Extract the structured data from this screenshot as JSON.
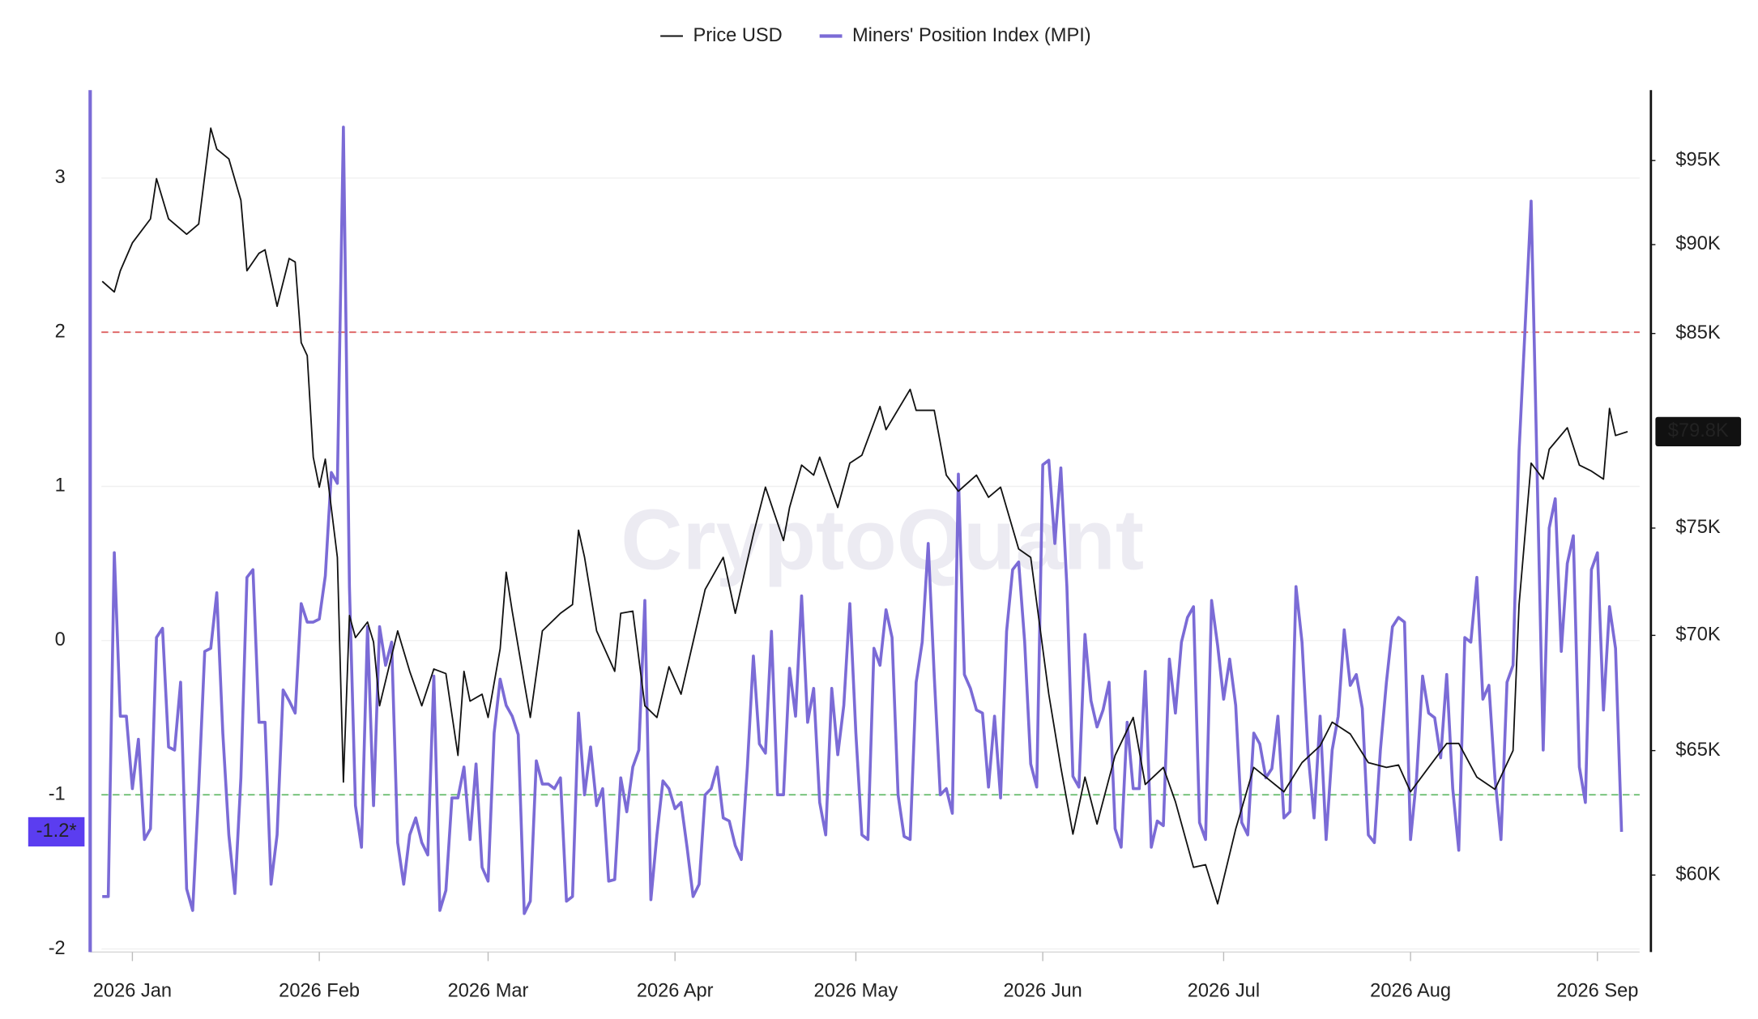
{
  "chart_data": {
    "type": "line",
    "watermark": "CryptoQuant",
    "legend": "top",
    "grid": true,
    "xlim": [
      -6,
      251
    ],
    "xticks": [
      {
        "value": 1,
        "label": "2026 Jan"
      },
      {
        "value": 32,
        "label": "2026 Feb"
      },
      {
        "value": 60,
        "label": "2026 Mar"
      },
      {
        "value": 91,
        "label": "2026 Apr"
      },
      {
        "value": 121,
        "label": "2026 May"
      },
      {
        "value": 152,
        "label": "2026 Jun"
      },
      {
        "value": 182,
        "label": "2026 Jul"
      },
      {
        "value": 213,
        "label": "2026 Aug"
      },
      {
        "value": 244,
        "label": "2026 Sep"
      }
    ],
    "ylim": [
      -2.02,
      3.57
    ],
    "yticks": [
      -2,
      -1,
      0,
      1,
      2,
      3
    ],
    "y2lim": [
      57100,
      99400
    ],
    "y2log": true,
    "y2ticks": [
      {
        "value": 60000,
        "label": "$60K"
      },
      {
        "value": 65000,
        "label": "$65K"
      },
      {
        "value": 70000,
        "label": "$70K"
      },
      {
        "value": 75000,
        "label": "$75K"
      },
      {
        "value": 85000,
        "label": "$85K"
      },
      {
        "value": 90000,
        "label": "$90K"
      },
      {
        "value": 95000,
        "label": "$95K"
      }
    ],
    "reference_lines": [
      {
        "value": 2,
        "color": "#e06a6a"
      },
      {
        "value": -1,
        "color": "#6fbf73"
      }
    ],
    "series": [
      {
        "name": "Price USD",
        "color": "#111111",
        "axis": "y2",
        "width": 1.3,
        "last_value_label": "$79.8K",
        "x": [
          -4,
          -2,
          -1,
          1,
          4,
          5,
          7,
          10,
          12,
          14,
          15,
          17,
          19,
          20,
          22,
          23,
          25,
          27,
          28,
          29,
          30,
          31,
          32,
          33,
          35,
          36,
          37,
          38,
          40,
          41,
          42,
          45,
          47,
          49,
          51,
          53,
          55,
          56,
          57,
          59,
          60,
          62,
          63,
          64,
          66,
          67,
          69,
          72,
          74,
          75,
          76,
          78,
          81,
          82,
          84,
          86,
          88,
          90,
          92,
          94,
          96,
          99,
          101,
          104,
          106,
          109,
          110,
          112,
          114,
          115,
          118,
          120,
          122,
          125,
          126,
          130,
          131,
          134,
          136,
          138,
          141,
          143,
          145,
          148,
          150,
          153,
          155,
          157,
          159,
          161,
          164,
          167,
          169,
          172,
          174,
          177,
          179,
          181,
          184,
          187,
          189,
          192,
          195,
          198,
          200,
          203,
          206,
          209,
          211,
          213,
          216,
          219,
          221,
          224,
          227,
          230,
          231,
          233,
          235,
          236,
          239,
          241,
          243,
          245,
          246,
          247,
          249
        ],
        "values": [
          87900,
          87300,
          88500,
          90100,
          91500,
          93900,
          91500,
          90600,
          91200,
          97000,
          95700,
          95100,
          92600,
          88500,
          89500,
          89700,
          86500,
          89200,
          89000,
          84500,
          83800,
          78500,
          77000,
          78400,
          73600,
          63700,
          70900,
          69900,
          70600,
          69700,
          66900,
          70200,
          68400,
          66900,
          68500,
          68300,
          64800,
          68400,
          67100,
          67400,
          66400,
          69400,
          72900,
          71100,
          67900,
          66400,
          70200,
          71000,
          71400,
          74900,
          73600,
          70200,
          68400,
          71000,
          71100,
          66900,
          66400,
          68600,
          67400,
          69700,
          72100,
          73600,
          71000,
          74700,
          77000,
          74400,
          76000,
          78100,
          77600,
          78500,
          76000,
          78200,
          78600,
          81100,
          79900,
          82000,
          80900,
          80900,
          77600,
          76800,
          77600,
          76500,
          77000,
          74000,
          73600,
          67400,
          64300,
          61600,
          63900,
          62000,
          64800,
          66400,
          63600,
          64300,
          62900,
          60300,
          60400,
          58900,
          61800,
          64300,
          63900,
          63300,
          64500,
          65200,
          66200,
          65700,
          64500,
          64300,
          64400,
          63300,
          64300,
          65300,
          65300,
          63900,
          63400,
          65000,
          71400,
          78200,
          77400,
          78900,
          80000,
          78100,
          77800,
          77400,
          81000,
          79600,
          79800
        ]
      },
      {
        "name": "Miners' Position Index (MPI)",
        "color": "#7b6bd6",
        "axis": "y",
        "width": 2.6,
        "last_value_label": "-1.2*",
        "x": [
          -4,
          -3,
          -2,
          -1,
          0,
          1,
          2,
          3,
          4,
          5,
          6,
          7,
          8,
          9,
          10,
          11,
          12,
          13,
          14,
          15,
          16,
          17,
          18,
          19,
          20,
          21,
          22,
          23,
          24,
          25,
          26,
          27,
          28,
          29,
          30,
          31,
          32,
          33,
          34,
          35,
          36,
          37,
          38,
          39,
          40,
          41,
          42,
          43,
          44,
          45,
          46,
          47,
          48,
          49,
          50,
          51,
          52,
          53,
          54,
          55,
          56,
          57,
          58,
          59,
          60,
          61,
          62,
          63,
          64,
          65,
          66,
          67,
          68,
          69,
          70,
          71,
          72,
          73,
          74,
          75,
          76,
          77,
          78,
          79,
          80,
          81,
          82,
          83,
          84,
          85,
          86,
          87,
          88,
          89,
          90,
          91,
          92,
          93,
          94,
          95,
          96,
          97,
          98,
          99,
          100,
          101,
          102,
          103,
          104,
          105,
          106,
          107,
          108,
          109,
          110,
          111,
          112,
          113,
          114,
          115,
          116,
          117,
          118,
          119,
          120,
          121,
          122,
          123,
          124,
          125,
          126,
          127,
          128,
          129,
          130,
          131,
          132,
          133,
          134,
          135,
          136,
          137,
          138,
          139,
          140,
          141,
          142,
          143,
          144,
          145,
          146,
          147,
          148,
          149,
          150,
          151,
          152,
          153,
          154,
          155,
          156,
          157,
          158,
          159,
          160,
          161,
          162,
          163,
          164,
          165,
          166,
          167,
          168,
          169,
          170,
          171,
          172,
          173,
          174,
          175,
          176,
          177,
          178,
          179,
          180,
          181,
          182,
          183,
          184,
          185,
          186,
          187,
          188,
          189,
          190,
          191,
          192,
          193,
          194,
          195,
          196,
          197,
          198,
          199,
          200,
          201,
          202,
          203,
          204,
          205,
          206,
          207,
          208,
          209,
          210,
          211,
          212,
          213,
          214,
          215,
          216,
          217,
          218,
          219,
          220,
          221,
          222,
          223,
          224,
          225,
          226,
          227,
          228,
          229,
          230,
          231,
          232,
          233,
          234,
          235,
          236,
          237,
          238,
          239,
          240,
          241,
          242,
          243,
          244,
          245,
          246,
          247,
          248
        ],
        "values": [
          -1.66,
          -1.66,
          0.57,
          -0.49,
          -0.49,
          -0.96,
          -0.64,
          -1.29,
          -1.22,
          0.02,
          0.08,
          -0.69,
          -0.71,
          -0.27,
          -1.61,
          -1.75,
          -0.96,
          -0.07,
          -0.05,
          0.31,
          -0.6,
          -1.26,
          -1.64,
          -0.89,
          0.41,
          0.46,
          -0.53,
          -0.53,
          -1.58,
          -1.26,
          -0.32,
          -0.39,
          -0.47,
          0.24,
          0.12,
          0.12,
          0.14,
          0.42,
          1.09,
          1.02,
          3.33,
          0.35,
          -1.07,
          -1.34,
          0.09,
          -1.07,
          0.09,
          -0.16,
          -0.01,
          -1.31,
          -1.58,
          -1.26,
          -1.15,
          -1.31,
          -1.39,
          -0.23,
          -1.75,
          -1.62,
          -1.02,
          -1.02,
          -0.82,
          -1.29,
          -0.8,
          -1.47,
          -1.56,
          -0.6,
          -0.25,
          -0.42,
          -0.49,
          -0.61,
          -1.77,
          -1.69,
          -0.78,
          -0.93,
          -0.93,
          -0.96,
          -0.89,
          -1.69,
          -1.66,
          -0.47,
          -1.0,
          -0.69,
          -1.07,
          -0.96,
          -1.56,
          -1.55,
          -0.89,
          -1.11,
          -0.82,
          -0.71,
          0.26,
          -1.68,
          -1.26,
          -0.91,
          -0.96,
          -1.09,
          -1.05,
          -1.34,
          -1.66,
          -1.58,
          -1.0,
          -0.96,
          -0.82,
          -1.15,
          -1.17,
          -1.33,
          -1.42,
          -0.82,
          -0.1,
          -0.67,
          -0.73,
          0.06,
          -1.0,
          -1.0,
          -0.18,
          -0.49,
          0.29,
          -0.53,
          -0.31,
          -1.05,
          -1.26,
          -0.31,
          -0.74,
          -0.42,
          0.24,
          -0.6,
          -1.26,
          -1.29,
          -0.05,
          -0.16,
          0.2,
          0.02,
          -1.0,
          -1.27,
          -1.29,
          -0.27,
          -0.01,
          0.63,
          -0.23,
          -1.0,
          -0.96,
          -1.12,
          1.08,
          -0.22,
          -0.31,
          -0.45,
          -0.47,
          -0.95,
          -0.49,
          -1.02,
          0.06,
          0.46,
          0.51,
          -0.01,
          -0.8,
          -0.95,
          1.14,
          1.17,
          0.63,
          1.12,
          0.35,
          -0.88,
          -0.95,
          0.04,
          -0.39,
          -0.56,
          -0.45,
          -0.27,
          -1.22,
          -1.34,
          -0.53,
          -0.96,
          -0.96,
          -0.2,
          -1.34,
          -1.17,
          -1.2,
          -0.12,
          -0.47,
          -0.01,
          0.15,
          0.22,
          -1.18,
          -1.29,
          0.26,
          -0.03,
          -0.38,
          -0.12,
          -0.42,
          -1.18,
          -1.26,
          -0.6,
          -0.67,
          -0.89,
          -0.83,
          -0.49,
          -1.15,
          -1.11,
          0.35,
          -0.01,
          -0.73,
          -1.15,
          -0.49,
          -1.29,
          -0.71,
          -0.49,
          0.07,
          -0.29,
          -0.22,
          -0.44,
          -1.26,
          -1.31,
          -0.71,
          -0.27,
          0.09,
          0.15,
          0.12,
          -1.29,
          -0.89,
          -0.23,
          -0.47,
          -0.5,
          -0.76,
          -0.22,
          -0.96,
          -1.36,
          0.02,
          -0.01,
          0.41,
          -0.38,
          -0.29,
          -0.89,
          -1.29,
          -0.27,
          -0.16,
          1.23,
          2.03,
          2.85,
          1.08,
          -0.71,
          0.73,
          0.92,
          -0.07,
          0.5,
          0.68,
          -0.82,
          -1.05,
          0.46,
          0.57,
          -0.45,
          0.22,
          -0.05,
          -1.24
        ]
      }
    ]
  }
}
